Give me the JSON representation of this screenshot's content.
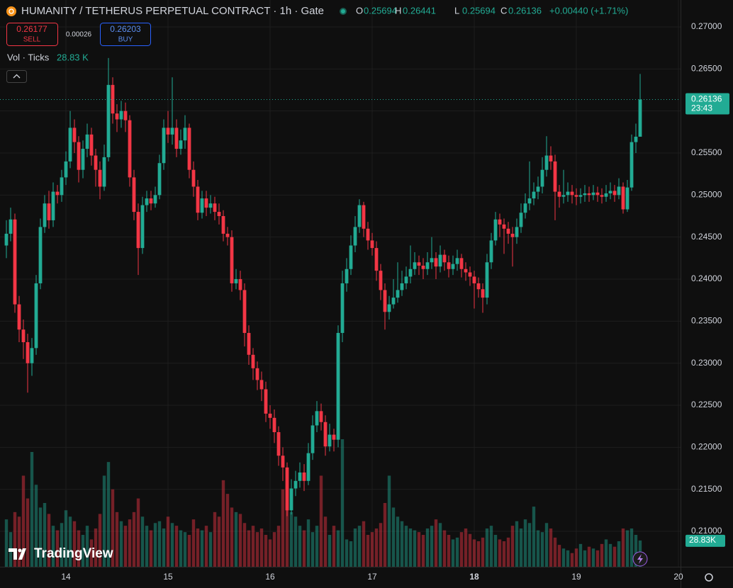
{
  "chart_data": {
    "type": "candlestick",
    "title": "HUMANITY / TETHERUS PERPETUAL CONTRACT · 1h · Gate",
    "legend_labels": {
      "open": "O",
      "high": "H",
      "low": "L",
      "close": "C"
    },
    "change_label": "+0.00440 (+1.71%)",
    "sell_price": "0.26177",
    "sell_label": "SELL",
    "spread": "0.00026",
    "buy_price": "0.26203",
    "buy_label": "BUY",
    "volume_title": "Vol · Ticks",
    "volume_value_label": "28.83 K",
    "volume_axis_label": "28.83K",
    "countdown": "23:43",
    "brand": "TradingView",
    "up_color": "#22ab94",
    "down_color": "#f23645",
    "open": [
      0.244,
      0.2454,
      0.2471,
      0.237,
      0.234,
      0.2325,
      0.23,
      0.2318,
      0.2395,
      0.2462,
      0.249,
      0.247,
      0.2504,
      0.25,
      0.2521,
      0.254,
      0.258,
      0.2563,
      0.253,
      0.2555,
      0.2572,
      0.2547,
      0.253,
      0.251,
      0.2545,
      0.2631,
      0.2597,
      0.259,
      0.26,
      0.2589,
      0.2521,
      0.248,
      0.2437,
      0.2488,
      0.2496,
      0.249,
      0.25,
      0.2538,
      0.258,
      0.2572,
      0.258,
      0.2555,
      0.2565,
      0.258,
      0.253,
      0.251,
      0.2479,
      0.2496,
      0.2485,
      0.249,
      0.248,
      0.2475,
      0.2454,
      0.245,
      0.2395,
      0.24,
      0.2387,
      0.2336,
      0.231,
      0.2294,
      0.228,
      0.2269,
      0.224,
      0.2235,
      0.2218,
      0.219,
      0.2176,
      0.2125,
      0.2151,
      0.216,
      0.217,
      0.216,
      0.2193,
      0.2226,
      0.2243,
      0.223,
      0.2201,
      0.2215,
      0.2209,
      0.2336,
      0.2395,
      0.2412,
      0.244,
      0.2462,
      0.2488,
      0.246,
      0.2446,
      0.2437,
      0.241,
      0.2387,
      0.2361,
      0.237,
      0.2378,
      0.2387,
      0.2395,
      0.2403,
      0.2412,
      0.242,
      0.2416,
      0.2412,
      0.242,
      0.2425,
      0.2415,
      0.2429,
      0.242,
      0.2412,
      0.2418,
      0.2425,
      0.2412,
      0.2408,
      0.2403,
      0.2395,
      0.2388,
      0.2378,
      0.242,
      0.2446,
      0.2471,
      0.2465,
      0.246,
      0.2454,
      0.245,
      0.2462,
      0.2479,
      0.249,
      0.2496,
      0.2504,
      0.251,
      0.253,
      0.2547,
      0.254,
      0.2504,
      0.2498,
      0.25,
      0.2504,
      0.25,
      0.2498,
      0.25,
      0.2502,
      0.25,
      0.2503,
      0.25,
      0.2498,
      0.2502,
      0.2505,
      0.25,
      0.251,
      0.2483,
      0.2509,
      0.2563,
      0.25694
    ],
    "high": [
      0.247,
      0.2485,
      0.2478,
      0.238,
      0.2352,
      0.2335,
      0.233,
      0.2405,
      0.2472,
      0.25,
      0.2505,
      0.2515,
      0.2512,
      0.253,
      0.2552,
      0.26,
      0.259,
      0.257,
      0.2565,
      0.2585,
      0.258,
      0.2555,
      0.254,
      0.256,
      0.2663,
      0.264,
      0.2608,
      0.2612,
      0.261,
      0.2595,
      0.253,
      0.249,
      0.2498,
      0.2505,
      0.2505,
      0.251,
      0.2548,
      0.259,
      0.26,
      0.264,
      0.259,
      0.2578,
      0.2595,
      0.2585,
      0.254,
      0.2518,
      0.2505,
      0.2505,
      0.25,
      0.2498,
      0.249,
      0.2482,
      0.2462,
      0.2458,
      0.2412,
      0.241,
      0.2395,
      0.2345,
      0.2318,
      0.2302,
      0.229,
      0.2278,
      0.225,
      0.2245,
      0.2225,
      0.22,
      0.2182,
      0.2162,
      0.2172,
      0.2182,
      0.218,
      0.2205,
      0.2238,
      0.2255,
      0.2252,
      0.2238,
      0.2228,
      0.2222,
      0.2345,
      0.241,
      0.2425,
      0.2452,
      0.2475,
      0.2495,
      0.2492,
      0.2468,
      0.2455,
      0.2445,
      0.2418,
      0.2395,
      0.238,
      0.24,
      0.242,
      0.241,
      0.2415,
      0.244,
      0.2432,
      0.2428,
      0.2425,
      0.2432,
      0.245,
      0.2432,
      0.244,
      0.2435,
      0.2428,
      0.2428,
      0.2435,
      0.243,
      0.242,
      0.2415,
      0.241,
      0.2402,
      0.2395,
      0.243,
      0.2455,
      0.248,
      0.2478,
      0.2472,
      0.2468,
      0.2462,
      0.2472,
      0.249,
      0.2502,
      0.254,
      0.2515,
      0.2522,
      0.2545,
      0.257,
      0.2558,
      0.2548,
      0.2512,
      0.253,
      0.2515,
      0.2512,
      0.2508,
      0.2508,
      0.2512,
      0.251,
      0.2512,
      0.251,
      0.2508,
      0.2512,
      0.2515,
      0.2512,
      0.252,
      0.2515,
      0.2518,
      0.2572,
      0.2585,
      0.26441
    ],
    "low": [
      0.2425,
      0.2445,
      0.236,
      0.2325,
      0.2305,
      0.2265,
      0.2285,
      0.231,
      0.2388,
      0.2455,
      0.246,
      0.2462,
      0.249,
      0.2492,
      0.2512,
      0.2532,
      0.255,
      0.2515,
      0.252,
      0.2545,
      0.2535,
      0.251,
      0.2495,
      0.2505,
      0.254,
      0.2585,
      0.2575,
      0.258,
      0.2575,
      0.251,
      0.247,
      0.2405,
      0.243,
      0.248,
      0.2482,
      0.2485,
      0.2495,
      0.253,
      0.2562,
      0.256,
      0.2545,
      0.2548,
      0.2555,
      0.252,
      0.2498,
      0.247,
      0.2472,
      0.2475,
      0.2478,
      0.247,
      0.2465,
      0.2445,
      0.244,
      0.2385,
      0.2388,
      0.2375,
      0.232,
      0.2298,
      0.228,
      0.2268,
      0.2255,
      0.223,
      0.2222,
      0.2205,
      0.2178,
      0.216,
      0.2118,
      0.212,
      0.2142,
      0.2152,
      0.2148,
      0.2155,
      0.2185,
      0.2218,
      0.222,
      0.219,
      0.2195,
      0.2195,
      0.22,
      0.2325,
      0.2385,
      0.2405,
      0.2432,
      0.2455,
      0.245,
      0.2435,
      0.2428,
      0.2398,
      0.2375,
      0.234,
      0.2352,
      0.2365,
      0.2372,
      0.238,
      0.2388,
      0.2395,
      0.2405,
      0.2405,
      0.24,
      0.2405,
      0.2412,
      0.24,
      0.2408,
      0.241,
      0.2402,
      0.2405,
      0.241,
      0.2402,
      0.2398,
      0.2392,
      0.2365,
      0.2378,
      0.236,
      0.237,
      0.2412,
      0.244,
      0.245,
      0.243,
      0.2442,
      0.2415,
      0.2442,
      0.2455,
      0.2472,
      0.2482,
      0.2488,
      0.2495,
      0.2502,
      0.2522,
      0.253,
      0.247,
      0.2485,
      0.249,
      0.2492,
      0.249,
      0.2488,
      0.249,
      0.2492,
      0.2492,
      0.2494,
      0.2492,
      0.249,
      0.2492,
      0.2495,
      0.2492,
      0.2495,
      0.2478,
      0.248,
      0.2505,
      0.255,
      0.25694
    ],
    "close": [
      0.2454,
      0.2471,
      0.237,
      0.234,
      0.2325,
      0.23,
      0.2318,
      0.2395,
      0.2462,
      0.249,
      0.247,
      0.2504,
      0.25,
      0.2521,
      0.254,
      0.258,
      0.2563,
      0.253,
      0.2555,
      0.2572,
      0.2547,
      0.253,
      0.251,
      0.2545,
      0.2631,
      0.2597,
      0.259,
      0.26,
      0.2589,
      0.2521,
      0.248,
      0.2437,
      0.2488,
      0.2496,
      0.249,
      0.25,
      0.2538,
      0.258,
      0.2572,
      0.258,
      0.2555,
      0.2565,
      0.258,
      0.253,
      0.251,
      0.2479,
      0.2496,
      0.2485,
      0.249,
      0.248,
      0.2475,
      0.2454,
      0.245,
      0.2395,
      0.24,
      0.2387,
      0.2336,
      0.231,
      0.2294,
      0.228,
      0.2269,
      0.224,
      0.2235,
      0.2218,
      0.219,
      0.2176,
      0.2125,
      0.2151,
      0.216,
      0.217,
      0.216,
      0.2193,
      0.2226,
      0.2243,
      0.223,
      0.2201,
      0.2215,
      0.2209,
      0.2336,
      0.2395,
      0.2412,
      0.244,
      0.2462,
      0.2488,
      0.246,
      0.2446,
      0.2437,
      0.241,
      0.2387,
      0.2361,
      0.237,
      0.2378,
      0.2387,
      0.2395,
      0.2403,
      0.2412,
      0.242,
      0.2416,
      0.2412,
      0.242,
      0.2425,
      0.2415,
      0.2429,
      0.242,
      0.2412,
      0.2418,
      0.2425,
      0.2412,
      0.2408,
      0.2403,
      0.2395,
      0.2388,
      0.2378,
      0.242,
      0.2446,
      0.2471,
      0.2465,
      0.246,
      0.2454,
      0.245,
      0.2462,
      0.2479,
      0.249,
      0.2496,
      0.2504,
      0.251,
      0.253,
      0.2547,
      0.254,
      0.2504,
      0.2498,
      0.25,
      0.2504,
      0.25,
      0.2498,
      0.25,
      0.2502,
      0.25,
      0.2503,
      0.25,
      0.2498,
      0.2502,
      0.2505,
      0.25,
      0.251,
      0.2483,
      0.2509,
      0.2563,
      0.25694,
      0.26136
    ],
    "volume": [
      52000,
      38000,
      60000,
      55000,
      100000,
      75000,
      126000,
      90000,
      65000,
      70000,
      58000,
      45000,
      40000,
      48000,
      62000,
      55000,
      50000,
      40000,
      35000,
      45000,
      30000,
      42000,
      58000,
      100000,
      115000,
      85000,
      60000,
      50000,
      45000,
      52000,
      60000,
      75000,
      55000,
      45000,
      40000,
      48000,
      50000,
      42000,
      55000,
      48000,
      45000,
      40000,
      38000,
      35000,
      52000,
      42000,
      40000,
      45000,
      38000,
      60000,
      55000,
      95000,
      80000,
      65000,
      60000,
      58000,
      48000,
      40000,
      45000,
      38000,
      42000,
      35000,
      30000,
      38000,
      45000,
      85000,
      70000,
      60000,
      55000,
      45000,
      40000,
      52000,
      38000,
      45000,
      100000,
      55000,
      35000,
      45000,
      40000,
      140000,
      30000,
      28000,
      42000,
      45000,
      50000,
      35000,
      38000,
      42000,
      48000,
      70000,
      100000,
      65000,
      55000,
      50000,
      45000,
      42000,
      40000,
      38000,
      35000,
      42000,
      45000,
      52000,
      48000,
      40000,
      35000,
      30000,
      32000,
      38000,
      42000,
      36000,
      30000,
      28000,
      32000,
      42000,
      45000,
      35000,
      30000,
      28000,
      32000,
      45000,
      50000,
      42000,
      52000,
      48000,
      66000,
      40000,
      38000,
      48000,
      42000,
      32000,
      24000,
      20000,
      18000,
      15000,
      20000,
      25000,
      18000,
      22000,
      20000,
      18000,
      25000,
      30000,
      25000,
      22000,
      28000,
      42000,
      40000,
      42000,
      35000,
      28830
    ],
    "xlim": [
      -1.5,
      158.5
    ],
    "xticks": [
      {
        "value": 14,
        "label": "14"
      },
      {
        "value": 38,
        "label": "15"
      },
      {
        "value": 62,
        "label": "16"
      },
      {
        "value": 86,
        "label": "17"
      },
      {
        "value": 110,
        "label": "18"
      },
      {
        "value": 134,
        "label": "19"
      },
      {
        "value": 158,
        "label": "20"
      }
    ],
    "ylim": [
      0.20579,
      0.2732
    ],
    "yticks": [
      {
        "value": 0.27,
        "label": "0.27000"
      },
      {
        "value": 0.265,
        "label": "0.26500"
      },
      {
        "value": 0.26,
        "label": "0.26000"
      },
      {
        "value": 0.255,
        "label": "0.25500"
      },
      {
        "value": 0.25,
        "label": "0.25000"
      },
      {
        "value": 0.245,
        "label": "0.24500"
      },
      {
        "value": 0.24,
        "label": "0.24000"
      },
      {
        "value": 0.235,
        "label": "0.23500"
      },
      {
        "value": 0.23,
        "label": "0.23000"
      },
      {
        "value": 0.225,
        "label": "0.22500"
      },
      {
        "value": 0.22,
        "label": "0.22000"
      },
      {
        "value": 0.215,
        "label": "0.21500"
      },
      {
        "value": 0.21,
        "label": "0.21000"
      }
    ],
    "grid": true
  }
}
